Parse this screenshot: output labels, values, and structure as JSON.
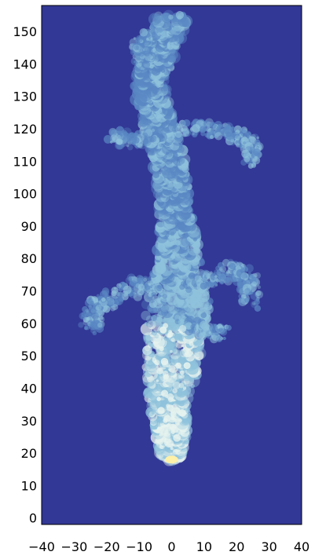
{
  "chart_data": {
    "type": "heatmap",
    "title": "",
    "xlabel": "",
    "ylabel": "",
    "xlim": [
      -40,
      40
    ],
    "ylim": [
      -2,
      158
    ],
    "x_ticks": [
      -40,
      -30,
      -20,
      -10,
      0,
      10,
      20,
      30,
      40
    ],
    "x_tick_labels": [
      "−40",
      "−30",
      "−20",
      "−10",
      "0",
      "10",
      "20",
      "30",
      "40"
    ],
    "y_ticks": [
      0,
      10,
      20,
      30,
      40,
      50,
      60,
      70,
      80,
      90,
      100,
      110,
      120,
      130,
      140,
      150
    ],
    "y_tick_labels": [
      "0",
      "10",
      "20",
      "30",
      "40",
      "50",
      "60",
      "70",
      "80",
      "90",
      "100",
      "110",
      "120",
      "130",
      "140",
      "150"
    ],
    "grid": false,
    "colors": {
      "background": "#323896",
      "plume_low": "#5a88c4",
      "plume_mid": "#8fc2dc",
      "plume_high": "#e6f3ef",
      "source": "#fdf0a8"
    },
    "source_point": {
      "x": 0,
      "y": 18
    },
    "plume_centerline": [
      {
        "y": 18,
        "x": 0,
        "half_width": 3
      },
      {
        "y": 25,
        "x": 0,
        "half_width": 5
      },
      {
        "y": 35,
        "x": -1,
        "half_width": 6
      },
      {
        "y": 45,
        "x": 0,
        "half_width": 8
      },
      {
        "y": 55,
        "x": 1,
        "half_width": 9
      },
      {
        "y": 65,
        "x": 2,
        "half_width": 10
      },
      {
        "y": 75,
        "x": 2,
        "half_width": 8
      },
      {
        "y": 85,
        "x": 2,
        "half_width": 6
      },
      {
        "y": 95,
        "x": 1,
        "half_width": 5
      },
      {
        "y": 105,
        "x": 0,
        "half_width": 5
      },
      {
        "y": 115,
        "x": -2,
        "half_width": 5
      },
      {
        "y": 125,
        "x": -5,
        "half_width": 5
      },
      {
        "y": 135,
        "x": -7,
        "half_width": 5
      },
      {
        "y": 145,
        "x": -3,
        "half_width": 5
      },
      {
        "y": 155,
        "x": 0,
        "half_width": 5
      }
    ],
    "side_branches": [
      {
        "points": [
          [
            -3,
            70
          ],
          [
            -10,
            72
          ],
          [
            -18,
            68
          ],
          [
            -24,
            65
          ],
          [
            -25,
            58
          ]
        ],
        "width": 3
      },
      {
        "points": [
          [
            5,
            72
          ],
          [
            14,
            74
          ],
          [
            20,
            77
          ],
          [
            24,
            73
          ],
          [
            24,
            66
          ]
        ],
        "width": 3
      },
      {
        "points": [
          [
            3,
            60
          ],
          [
            10,
            58
          ],
          [
            16,
            57
          ]
        ],
        "width": 2.5
      },
      {
        "points": [
          [
            -4,
            118
          ],
          [
            -12,
            116
          ],
          [
            -18,
            118
          ]
        ],
        "width": 2.5
      },
      {
        "points": [
          [
            2,
            120
          ],
          [
            12,
            120
          ],
          [
            20,
            118
          ],
          [
            25,
            115
          ],
          [
            24,
            110
          ]
        ],
        "width": 2.5
      },
      {
        "points": [
          [
            -8,
            140
          ],
          [
            -10,
            145
          ],
          [
            -6,
            150
          ]
        ],
        "width": 2.5
      }
    ]
  }
}
